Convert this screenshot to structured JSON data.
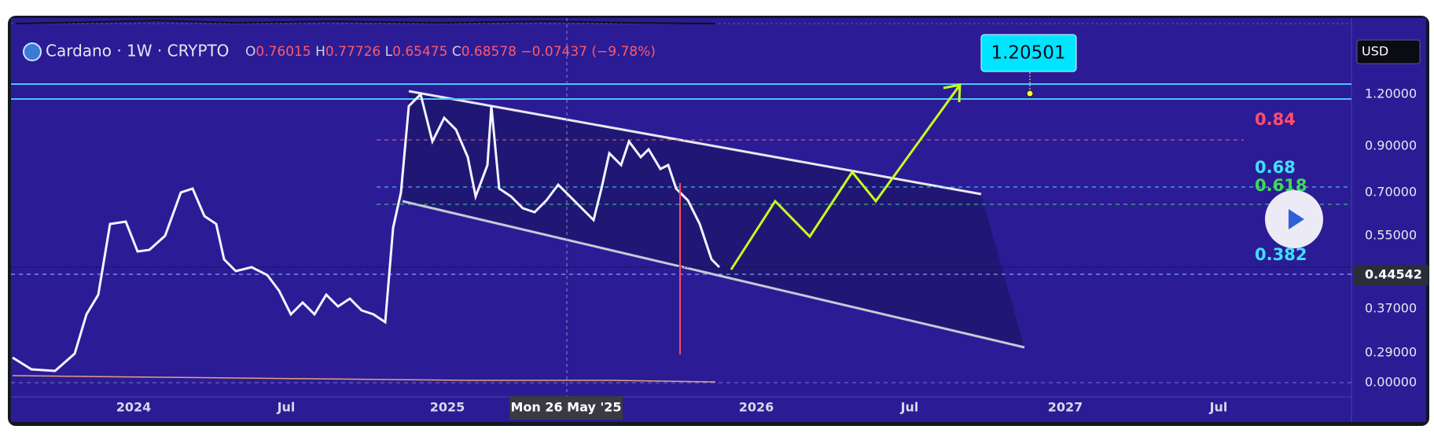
{
  "header": {
    "symbol": "Cardano · 1W · CRYPTO",
    "open_label": "O",
    "open": "0.76015",
    "high_label": "H",
    "high": "0.77726",
    "low_label": "L",
    "low": "0.65475",
    "close_label": "C",
    "close": "0.68578",
    "change": "−0.07437 (−9.78%)"
  },
  "currency": "USD",
  "price_axis": [
    "1.20000",
    "0.90000",
    "0.70000",
    "0.55000",
    "0.37000",
    "0.29000",
    "0.00000"
  ],
  "current_price": "0.44542",
  "time_axis": [
    "2024",
    "Jul",
    "2025",
    "2026",
    "Jul",
    "2027",
    "Jul"
  ],
  "crosshair_date": "Mon 26 May '25",
  "target": "1.20501",
  "fib_levels": [
    "0.84",
    "0.68",
    "0.618",
    "0.382"
  ]
}
